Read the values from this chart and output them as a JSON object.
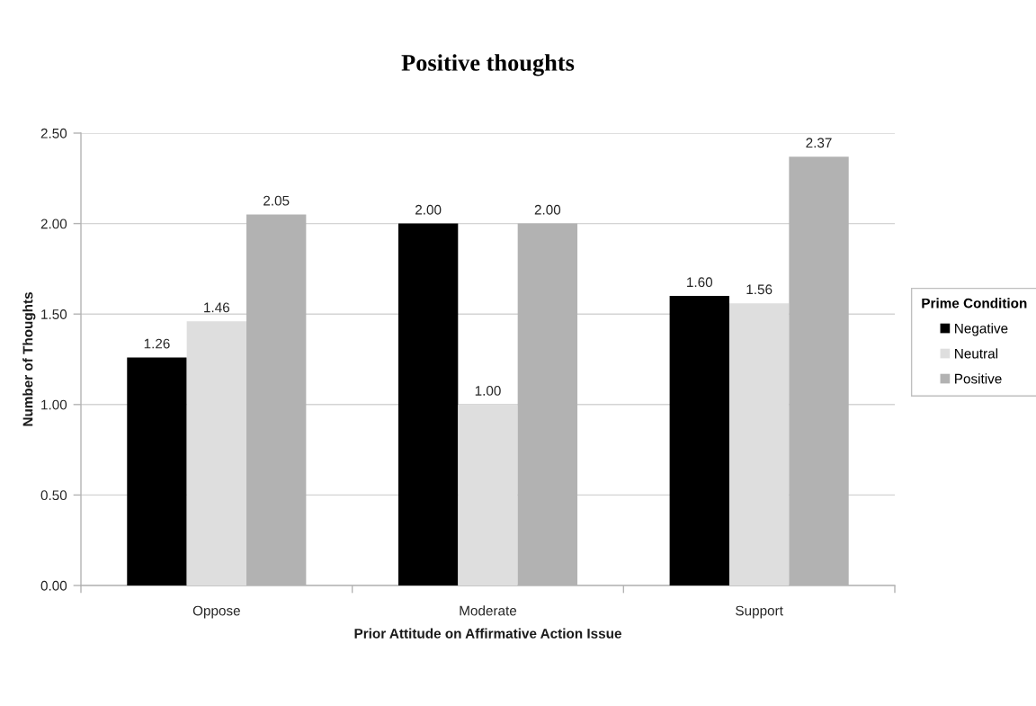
{
  "chart_data": {
    "type": "bar",
    "title": "Positive thoughts",
    "xlabel": "Prior Attitude on Affirmative Action Issue",
    "ylabel": "Number of Thoughts",
    "legend_title": "Prime Condition",
    "categories": [
      "Oppose",
      "Moderate",
      "Support"
    ],
    "series": [
      {
        "name": "Negative",
        "color": "#000000",
        "values": [
          1.26,
          2.0,
          1.6
        ],
        "value_labels": [
          "1.26",
          "2.00",
          "1.60"
        ]
      },
      {
        "name": "Neutral",
        "color": "#dedede",
        "values": [
          1.46,
          1.0,
          1.56
        ],
        "value_labels": [
          "1.46",
          "1.00",
          "1.56"
        ]
      },
      {
        "name": "Positive",
        "color": "#b2b2b2",
        "values": [
          2.05,
          2.0,
          2.37
        ],
        "value_labels": [
          "2.05",
          "2.00",
          "2.37"
        ]
      }
    ],
    "ylim": [
      0,
      2.5
    ],
    "yticks": [
      {
        "value": 0,
        "label": "0.00"
      },
      {
        "value": 0.5,
        "label": "0.50"
      },
      {
        "value": 1,
        "label": "1.00"
      },
      {
        "value": 1.5,
        "label": "1.50"
      },
      {
        "value": 2,
        "label": "2.00"
      },
      {
        "value": 2.5,
        "label": "2.50"
      }
    ],
    "grid": "y",
    "legend": "right"
  }
}
